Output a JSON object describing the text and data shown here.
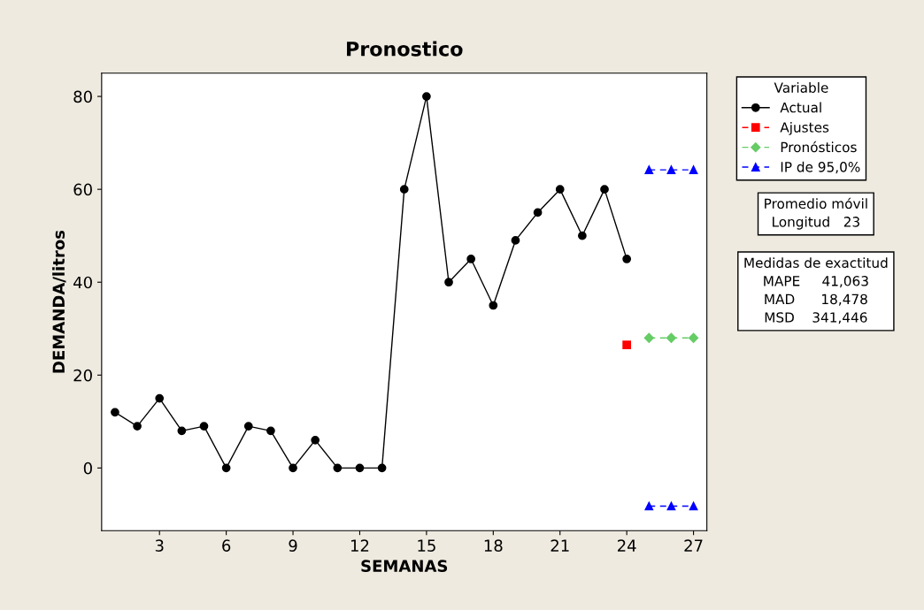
{
  "chart_data": {
    "type": "line",
    "title": "Pronostico",
    "xlabel": "SEMANAS",
    "ylabel": "DEMANDA/litros",
    "xlim": [
      0.4,
      27.6
    ],
    "ylim": [
      -13.5,
      85
    ],
    "xticks": [
      3,
      6,
      9,
      12,
      15,
      18,
      21,
      24,
      27
    ],
    "yticks": [
      0,
      20,
      40,
      60,
      80
    ],
    "grid": false,
    "legend": "right",
    "legend_title": "Variable",
    "series": [
      {
        "name": "Actual",
        "color": "#000000",
        "marker": "circle",
        "line_style": "solid",
        "x": [
          1,
          2,
          3,
          4,
          5,
          6,
          7,
          8,
          9,
          10,
          11,
          12,
          13,
          14,
          15,
          16,
          17,
          18,
          19,
          20,
          21,
          22,
          23,
          24
        ],
        "values": [
          12,
          9,
          15,
          8,
          9,
          0,
          9,
          8,
          0,
          6,
          0,
          0,
          0,
          60,
          80,
          40,
          45,
          35,
          49,
          55,
          60,
          50,
          60,
          45
        ]
      },
      {
        "name": "Ajustes",
        "color": "#ff0000",
        "marker": "square",
        "line_style": "dashed",
        "x": [
          24
        ],
        "values": [
          26.5
        ]
      },
      {
        "name": "Pronósticos",
        "color": "#66cc66",
        "marker": "diamond",
        "line_style": "dashed",
        "x": [
          25,
          26,
          27
        ],
        "values": [
          28,
          28,
          28
        ]
      },
      {
        "name": "IP de 95,0%",
        "color": "#0000ff",
        "marker": "triangle",
        "line_style": "dashed",
        "x": [
          25,
          26,
          27
        ],
        "values": [
          64.2,
          64.2,
          64.2
        ]
      },
      {
        "color": "#0000ff",
        "marker": "triangle",
        "line_style": "dashed",
        "x": [
          25,
          26,
          27
        ],
        "values": [
          -8.2,
          -8.2,
          -8.2
        ]
      }
    ],
    "annotations": [
      "Promedio móvil\nLongitud   23",
      "Medidas de exactitud\nMAPE     41,063\nMAD      18,478\nMSD    341,446"
    ]
  }
}
